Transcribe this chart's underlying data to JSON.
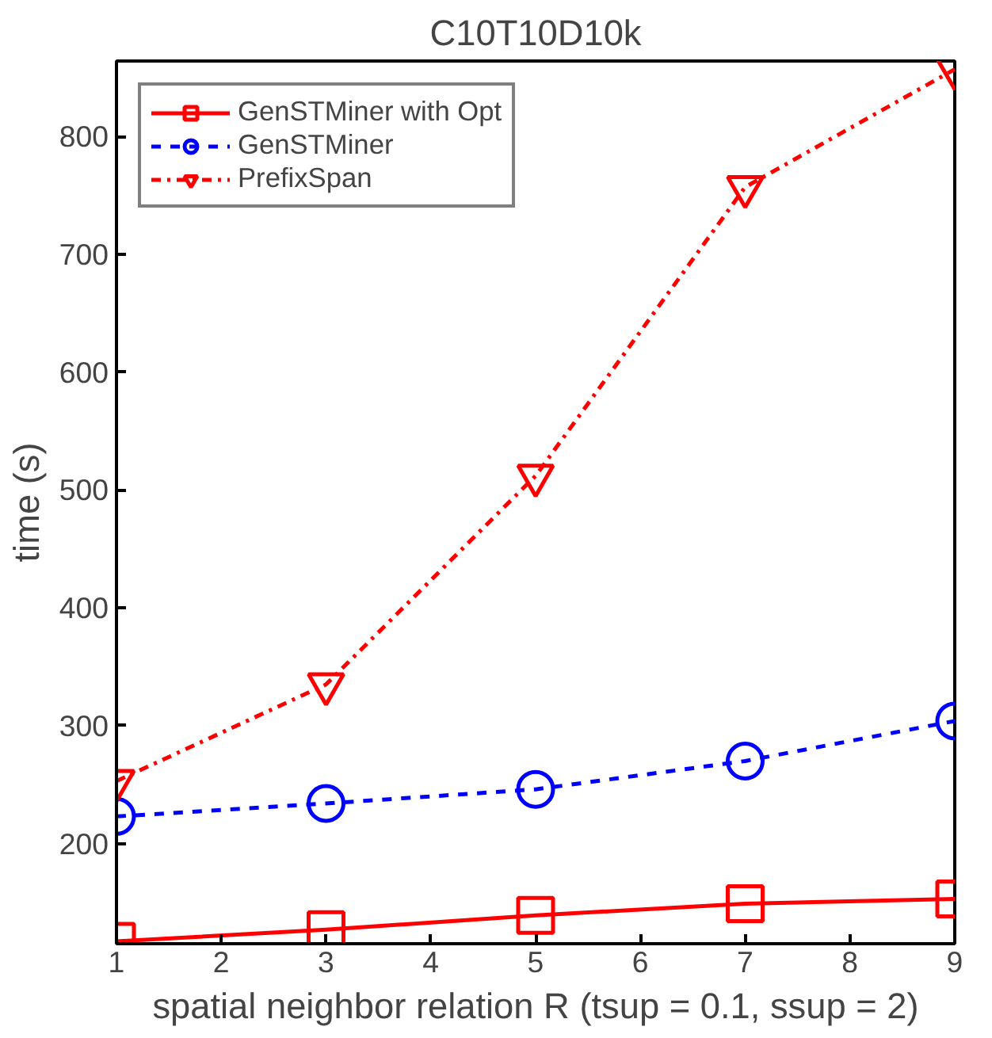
{
  "chart_data": {
    "type": "line",
    "title": "C10T10D10k",
    "xlabel": "spatial neighbor relation R (tsup = 0.1, ssup = 2)",
    "ylabel": "time (s)",
    "x": [
      1,
      3,
      5,
      7,
      9
    ],
    "series": [
      {
        "name": "GenSTMiner with Opt",
        "color": "#ff0000",
        "marker": "square",
        "line_style": "solid",
        "values": [
          117,
          127,
          139,
          149,
          153
        ]
      },
      {
        "name": "GenSTMiner",
        "color": "#0000ff",
        "marker": "circle",
        "line_style": "dashed",
        "values": [
          223,
          234,
          246,
          270,
          304
        ]
      },
      {
        "name": "PrefixSpan",
        "color": "#ff0000",
        "marker": "triangle",
        "line_style": "dashdot",
        "values": [
          253,
          335,
          512,
          757,
          857
        ]
      }
    ],
    "xlim": [
      1,
      9
    ],
    "xticks": [
      1,
      2,
      3,
      4,
      5,
      6,
      7,
      8,
      9
    ],
    "ylim": [
      115,
      864
    ],
    "yticks": [
      200,
      300,
      400,
      500,
      600,
      700,
      800
    ],
    "grid": false,
    "legend": "top left"
  }
}
